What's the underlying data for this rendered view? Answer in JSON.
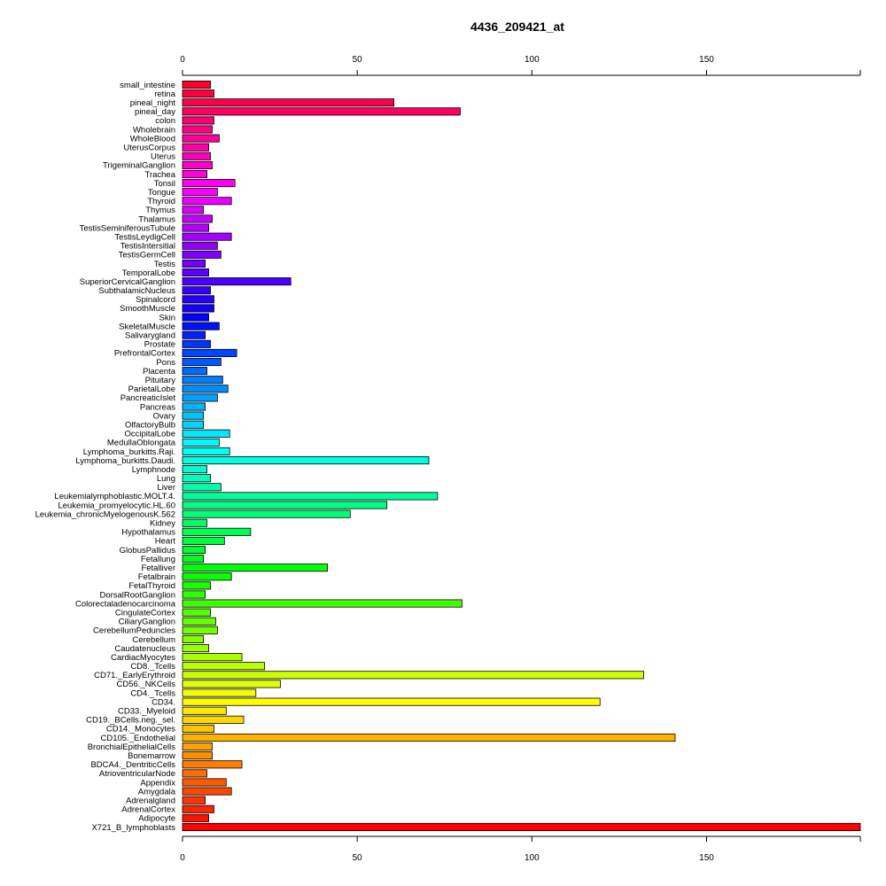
{
  "chart_data": {
    "type": "bar",
    "orientation": "horizontal",
    "title": "4436_209421_at",
    "xlabel": "",
    "ylabel": "",
    "xlim": [
      0,
      194
    ],
    "xticks": [
      0,
      50,
      100,
      150
    ],
    "grid": false,
    "categories": [
      "small_intestine",
      "retina",
      "pineal_night",
      "pineal_day",
      "colon",
      "Wholebrain",
      "WholeBlood",
      "UterusCorpus",
      "Uterus",
      "TrigeminalGanglion",
      "Trachea",
      "Tonsil",
      "Tongue",
      "Thyroid",
      "Thymus",
      "Thalamus",
      "TestisSeminiferousTubule",
      "TestisLeydigCell",
      "TestisIntersitial",
      "TestisGermCell",
      "Testis",
      "TemporalLobe",
      "SuperiorCervicalGanglion",
      "SubthalamicNucleus",
      "Spinalcord",
      "SmoothMuscle",
      "Skin",
      "SkeletalMuscle",
      "Salivarygland",
      "Prostate",
      "PrefrontalCortex",
      "Pons",
      "Placenta",
      "Pituitary",
      "ParietalLobe",
      "PancreaticIslet",
      "Pancreas",
      "Ovary",
      "OlfactoryBulb",
      "OccipitalLobe",
      "MedullaOblongata",
      "Lymphoma_burkitts.Raji.",
      "Lymphoma_burkitts.Daudi.",
      "Lymphnode",
      "Lung",
      "Liver",
      "Leukemialymphoblastic.MOLT.4.",
      "Leukemia_promyelocytic.HL.60",
      "Leukemia_chronicMyelogenousK.562",
      "Kidney",
      "Hypothalamus",
      "Heart",
      "GlobusPallidus",
      "Fetallung",
      "Fetalliver",
      "Fetalbrain",
      "FetalThyroid",
      "DorsalRootGanglion",
      "Colorectaladenocarcinoma",
      "CingulateCortex",
      "CiliaryGanglion",
      "CerebellumPeduncles",
      "Cerebellum",
      "Caudatenucleus",
      "CardiacMyocytes",
      "CD8._Tcells",
      "CD71._EarlyErythroid",
      "CD56._NKCells",
      "CD4._Tcells",
      "CD34.",
      "CD33._Myeloid",
      "CD19._BCells.neg._sel.",
      "CD14._Monocytes",
      "CD105._Endothelial",
      "BronchialEpithelialCells",
      "Bonemarrow",
      "BDCA4._DentriticCells",
      "AtrioventricularNode",
      "Appendix",
      "Amygdala",
      "Adrenalgland",
      "AdrenalCortex",
      "Adipocyte",
      "X721_B_lymphoblasts"
    ],
    "values": [
      8,
      9,
      60.5,
      79.5,
      9,
      8.5,
      10.5,
      7.5,
      8,
      8.5,
      7,
      15,
      10,
      14,
      6,
      8.5,
      7.5,
      14,
      10,
      11,
      6.5,
      7.5,
      31,
      8,
      9,
      9,
      7.5,
      10.5,
      6.5,
      8,
      15.5,
      11,
      7,
      11.5,
      13,
      10,
      6.5,
      6,
      6,
      13.5,
      10.5,
      13.5,
      70.5,
      7,
      8,
      11,
      73,
      58.5,
      48,
      7,
      19.5,
      12,
      6.5,
      6,
      41.5,
      14,
      8,
      6.5,
      80,
      8,
      9.5,
      10,
      6,
      7.5,
      17,
      23.5,
      132,
      28,
      21,
      119.5,
      12.5,
      17.5,
      9,
      141,
      8.5,
      8.5,
      17,
      7,
      12.5,
      14,
      6.5,
      9,
      7.5,
      194
    ]
  }
}
